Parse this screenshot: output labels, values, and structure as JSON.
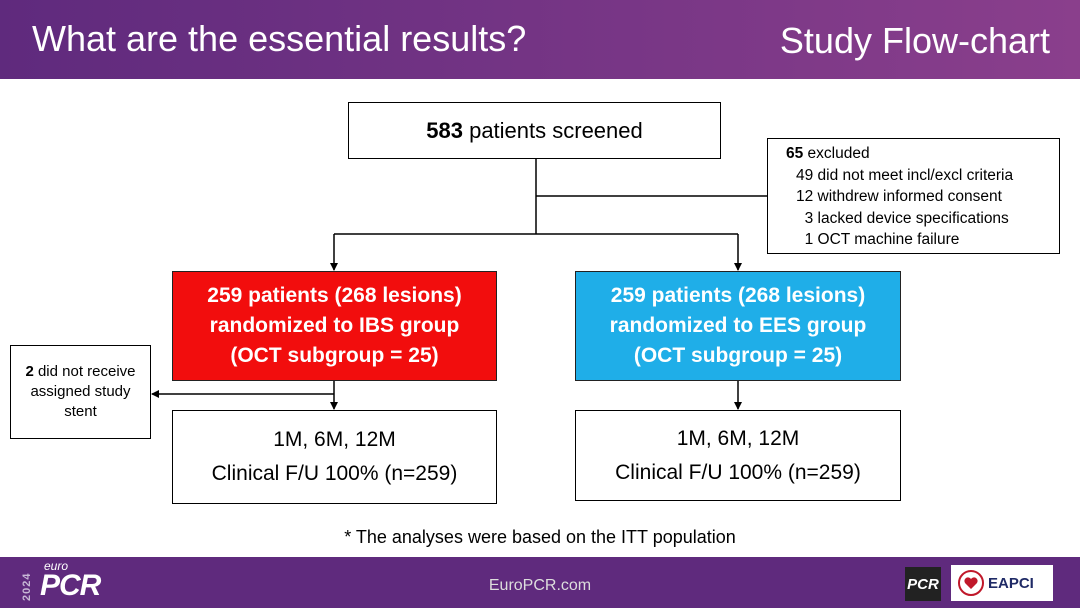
{
  "header": {
    "title": "What are the essential results?",
    "section": "Study Flow-chart"
  },
  "flowchart": {
    "screened": {
      "count": "583",
      "text": " patients screened"
    },
    "excluded": {
      "count": "65",
      "label": " excluded",
      "reasons": [
        "49 did not meet incl/excl criteria",
        "12 withdrew informed consent",
        "  3 lacked device specifications",
        "  1 OCT machine failure"
      ]
    },
    "ibs": {
      "line1": "259 patients (268 lesions)",
      "line2": "randomized to IBS group",
      "line3": "(OCT subgroup = 25)"
    },
    "ees": {
      "line1": "259 patients (268 lesions)",
      "line2": "randomized to EES group",
      "line3": "(OCT subgroup = 25)"
    },
    "not_received": {
      "count": "2",
      "text1": " did not receive",
      "text2": "assigned study",
      "text3": "stent"
    },
    "followup_left": {
      "line1": "1M, 6M, 12M",
      "line2": "Clinical F/U 100% (n=259)"
    },
    "followup_right": {
      "line1": "1M, 6M, 12M",
      "line2": "Clinical F/U 100% (n=259)"
    }
  },
  "footnote": "* The analyses were based on the ITT population",
  "footer": {
    "url": "EuroPCR.com",
    "logo_year": "2024",
    "logo_euro": "euro",
    "logo_pcr": "PCR",
    "badge": "PCR",
    "eapci": "EAPCI",
    "colors": {
      "header": "#5f2a7d",
      "ibs": "#f20d0d",
      "ees": "#1faee8"
    }
  }
}
